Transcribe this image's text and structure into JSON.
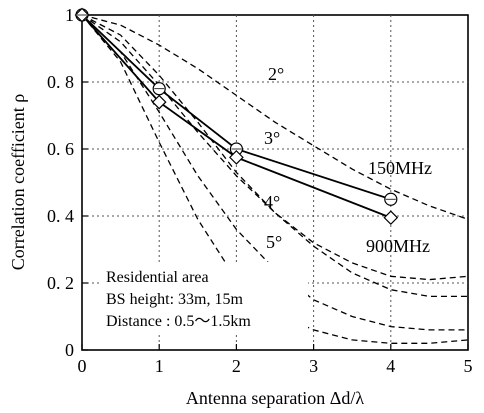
{
  "chart_data": {
    "type": "line",
    "xlabel": "Antenna  separation  Δd/λ",
    "ylabel": "Correlation coefficient ρ",
    "xlim": [
      0,
      5
    ],
    "ylim": [
      0,
      1
    ],
    "x_ticks": [
      "0",
      "1",
      "2",
      "3",
      "4",
      "5"
    ],
    "y_ticks": [
      "0",
      "0. 2",
      "0. 4",
      "0. 6",
      "0. 8",
      "1"
    ],
    "grid": "dotted",
    "series": [
      {
        "name": "150MHz",
        "marker": "circle",
        "style": "solid",
        "x": [
          0,
          1,
          2,
          4
        ],
        "y": [
          1.0,
          0.78,
          0.6,
          0.45
        ]
      },
      {
        "name": "900MHz",
        "marker": "diamond",
        "style": "solid",
        "x": [
          0,
          1,
          2,
          4
        ],
        "y": [
          1.0,
          0.74,
          0.575,
          0.395
        ]
      },
      {
        "name": "",
        "style": "dashed",
        "x": [
          0,
          0.5,
          1,
          1.5,
          2,
          2.5,
          3,
          3.5,
          4,
          4.5,
          5
        ],
        "y": [
          1.0,
          0.97,
          0.91,
          0.84,
          0.76,
          0.68,
          0.61,
          0.54,
          0.48,
          0.43,
          0.39
        ]
      },
      {
        "name": "",
        "style": "dashed",
        "x": [
          0,
          0.5,
          1,
          1.5,
          2,
          2.5,
          3,
          3.5,
          4,
          4.5,
          5
        ],
        "y": [
          1.0,
          0.94,
          0.82,
          0.68,
          0.53,
          0.41,
          0.31,
          0.23,
          0.18,
          0.16,
          0.16
        ]
      },
      {
        "name": "",
        "style": "dashed",
        "x": [
          0,
          0.5,
          1,
          1.5,
          2,
          2.5,
          3,
          3.5,
          4,
          4.5,
          5
        ],
        "y": [
          1.0,
          0.92,
          0.79,
          0.65,
          0.52,
          0.41,
          0.32,
          0.26,
          0.22,
          0.21,
          0.22
        ]
      },
      {
        "name": "",
        "style": "dashed",
        "x": [
          0,
          0.5,
          1,
          1.5,
          2,
          2.5,
          3,
          3.5,
          4,
          4.5,
          5
        ],
        "y": [
          1.0,
          0.89,
          0.71,
          0.52,
          0.36,
          0.24,
          0.15,
          0.1,
          0.07,
          0.06,
          0.06
        ]
      },
      {
        "name": "",
        "style": "dashed",
        "x": [
          0,
          0.5,
          1,
          1.5,
          2,
          2.5,
          3,
          3.5,
          4,
          4.5,
          5
        ],
        "y": [
          1.0,
          0.86,
          0.62,
          0.39,
          0.21,
          0.11,
          0.06,
          0.03,
          0.02,
          0.02,
          0.03
        ]
      }
    ],
    "annotations": {
      "deg2": "2°",
      "deg3": "3°",
      "deg4": "4°",
      "deg5": "5°",
      "label150": "150MHz",
      "label900": "900MHz",
      "info_line1": "Residential area",
      "info_line2": "BS height: 33m, 15m",
      "info_line3": "Distance  : 0.5〜1.5km"
    }
  }
}
